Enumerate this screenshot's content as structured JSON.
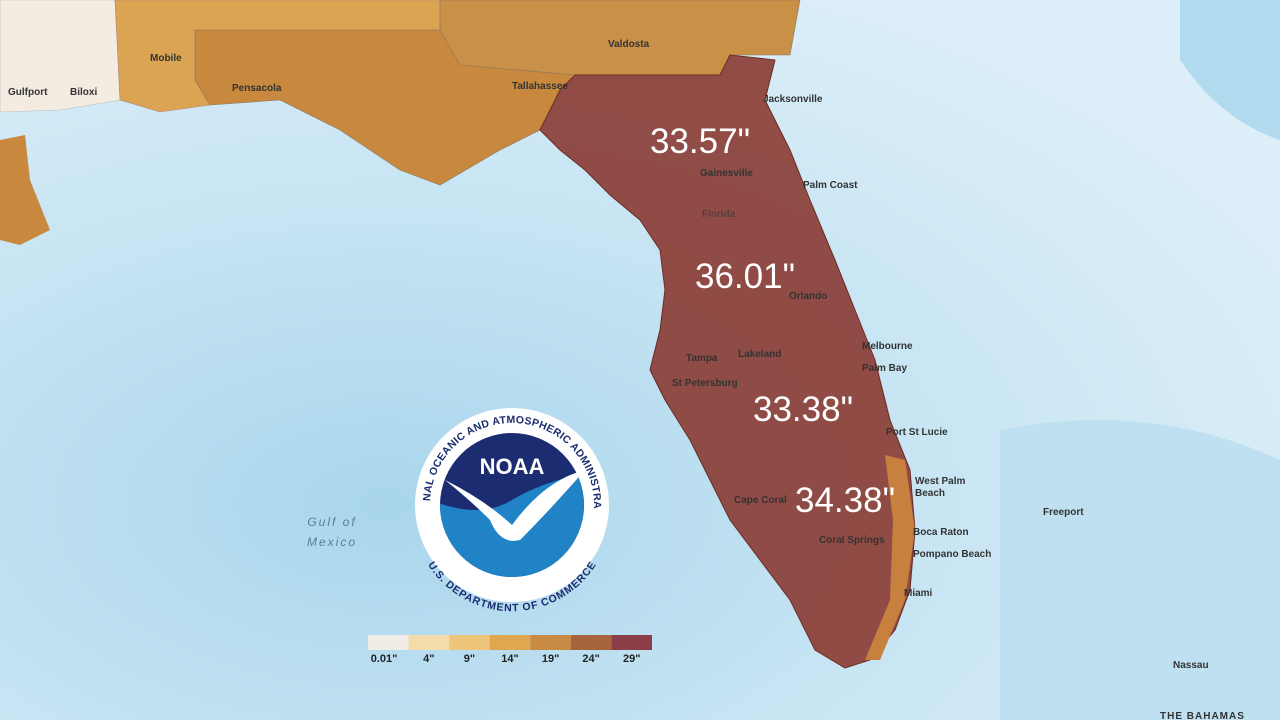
{
  "map": {
    "rainfall_labels": [
      "33.57\"",
      "36.01\"",
      "33.38\"",
      "34.38\""
    ],
    "cities": [
      "Mobile",
      "Gulfport",
      "Biloxi",
      "Pensacola",
      "Valdosta",
      "Tallahassee",
      "Jacksonville",
      "Gainesville",
      "Palm Coast",
      "Florida",
      "Orlando",
      "Melbourne",
      "Tampa",
      "Lakeland",
      "Palm Bay",
      "St Petersburg",
      "Port St Lucie",
      "West Palm",
      "Beach",
      "Cape Coral",
      "Boca Raton",
      "Coral Springs",
      "Pompano Beach",
      "Miami",
      "Freeport",
      "Nassau",
      "THE BAHAMAS"
    ],
    "water": [
      "Gulf of",
      "Mexico"
    ],
    "legend": [
      "0.01\"",
      "4\"",
      "9\"",
      "14\"",
      "19\"",
      "24\"",
      "29\""
    ],
    "logo": {
      "name": "NOAA",
      "top_ring": "NATIONAL OCEANIC AND ATMOSPHERIC ADMINISTRATION",
      "bottom_ring": "U.S. DEPARTMENT OF COMMERCE"
    }
  }
}
